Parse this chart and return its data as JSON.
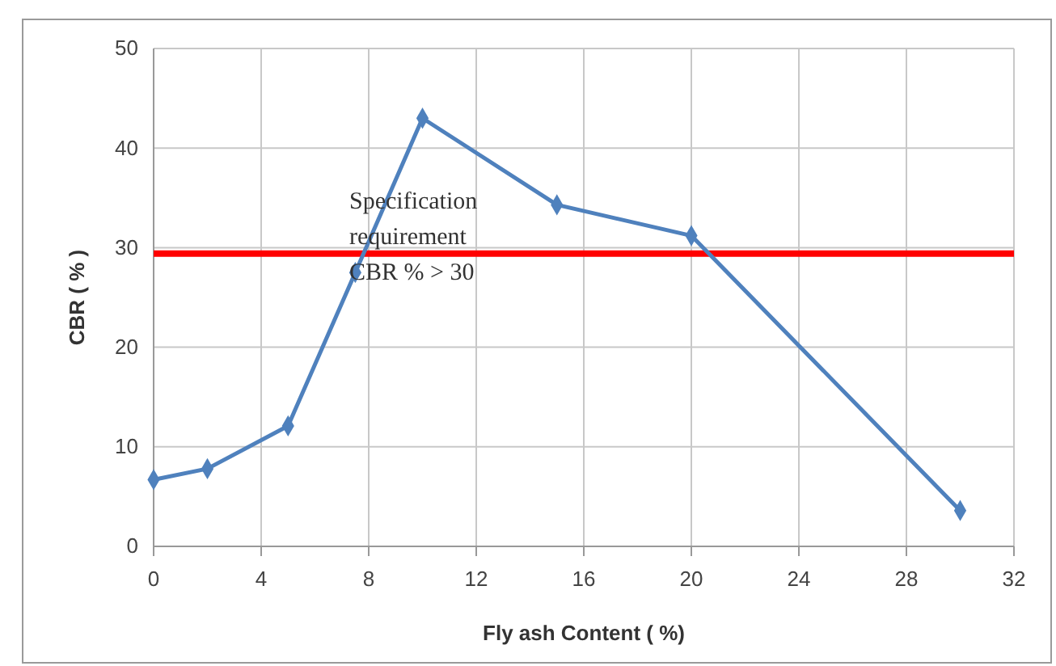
{
  "chart_data": {
    "type": "line",
    "xlabel": "Fly ash Content ( %)",
    "ylabel": "CBR ( % )",
    "x": [
      0,
      2,
      5,
      7.5,
      10,
      15,
      20,
      30
    ],
    "series": [
      {
        "color": "#4f81bd",
        "values": [
          6.7,
          7.8,
          12.1,
          27.5,
          43,
          34.3,
          31.2,
          3.6
        ]
      }
    ],
    "xlim": [
      0,
      32
    ],
    "xticks": [
      0,
      4,
      8,
      12,
      16,
      20,
      24,
      28,
      32
    ],
    "ylim": [
      0,
      50
    ],
    "yticks": [
      0,
      10,
      20,
      30,
      40,
      50
    ],
    "grid": true,
    "marker": "diamond",
    "line_style": "solid",
    "ref_lines": [
      {
        "axis": "y",
        "value": 29.4,
        "label": "Specification requirement CBR % > 30",
        "color": "#ff0000"
      }
    ]
  }
}
